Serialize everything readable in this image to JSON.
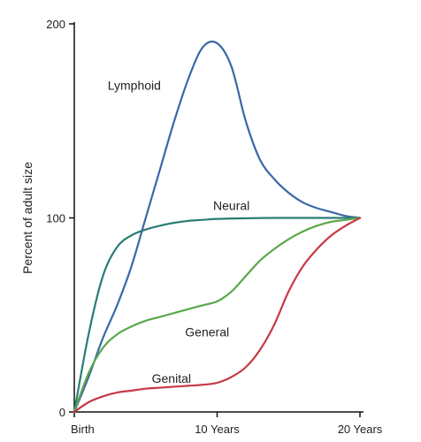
{
  "chart_data": {
    "type": "line",
    "title": "",
    "xlabel": "",
    "ylabel": "Percent of adult size",
    "xlim": [
      0,
      20
    ],
    "ylim": [
      0,
      200
    ],
    "x_ticks": [
      {
        "value": 0,
        "label": "Birth"
      },
      {
        "value": 10,
        "label": "10 Years"
      },
      {
        "value": 20,
        "label": "20 Years"
      }
    ],
    "y_ticks": [
      {
        "value": 0,
        "label": "0"
      },
      {
        "value": 100,
        "label": "100"
      },
      {
        "value": 200,
        "label": "200"
      }
    ],
    "grid": false,
    "legend": "none",
    "series": [
      {
        "name": "Lymphoid",
        "color": "#3a68a6",
        "label_at": [
          4.2,
          166
        ],
        "points": [
          [
            0,
            0
          ],
          [
            1,
            18
          ],
          [
            2,
            38
          ],
          [
            3,
            55
          ],
          [
            4,
            75
          ],
          [
            5,
            100
          ],
          [
            6,
            125
          ],
          [
            7,
            150
          ],
          [
            8,
            172
          ],
          [
            9,
            188
          ],
          [
            10,
            190
          ],
          [
            11,
            178
          ],
          [
            12,
            150
          ],
          [
            13,
            130
          ],
          [
            14,
            120
          ],
          [
            15,
            113
          ],
          [
            16,
            108
          ],
          [
            17,
            105
          ],
          [
            18,
            103
          ],
          [
            19,
            101
          ],
          [
            20,
            100
          ]
        ]
      },
      {
        "name": "Neural",
        "color": "#2a7c76",
        "label_at": [
          11,
          104
        ],
        "points": [
          [
            0,
            0
          ],
          [
            1,
            40
          ],
          [
            2,
            70
          ],
          [
            3,
            85
          ],
          [
            4,
            91
          ],
          [
            5,
            94
          ],
          [
            6,
            96
          ],
          [
            7,
            97.5
          ],
          [
            8,
            98.5
          ],
          [
            9,
            99
          ],
          [
            10,
            99.5
          ],
          [
            12,
            99.8
          ],
          [
            14,
            100
          ],
          [
            16,
            100
          ],
          [
            18,
            100
          ],
          [
            20,
            100
          ]
        ]
      },
      {
        "name": "General",
        "color": "#5aa84a",
        "label_at": [
          9.3,
          39
        ],
        "points": [
          [
            0,
            0
          ],
          [
            1,
            20
          ],
          [
            2,
            33
          ],
          [
            3,
            40
          ],
          [
            4,
            44
          ],
          [
            5,
            47
          ],
          [
            6,
            49
          ],
          [
            7,
            51
          ],
          [
            8,
            53
          ],
          [
            9,
            55
          ],
          [
            10,
            57
          ],
          [
            11,
            62
          ],
          [
            12,
            70
          ],
          [
            13,
            78
          ],
          [
            14,
            84
          ],
          [
            15,
            89
          ],
          [
            16,
            93
          ],
          [
            17,
            96
          ],
          [
            18,
            98
          ],
          [
            19,
            99
          ],
          [
            20,
            100
          ]
        ]
      },
      {
        "name": "Genital",
        "color": "#c63a45",
        "label_at": [
          6.8,
          15
        ],
        "points": [
          [
            0,
            0
          ],
          [
            1,
            5
          ],
          [
            2,
            8
          ],
          [
            3,
            10
          ],
          [
            4,
            11
          ],
          [
            5,
            12
          ],
          [
            6,
            12.5
          ],
          [
            7,
            13
          ],
          [
            8,
            13.5
          ],
          [
            9,
            14
          ],
          [
            10,
            15
          ],
          [
            11,
            18
          ],
          [
            12,
            23
          ],
          [
            13,
            32
          ],
          [
            14,
            45
          ],
          [
            15,
            62
          ],
          [
            16,
            75
          ],
          [
            17,
            84
          ],
          [
            18,
            91
          ],
          [
            19,
            96
          ],
          [
            20,
            100
          ]
        ]
      }
    ]
  }
}
